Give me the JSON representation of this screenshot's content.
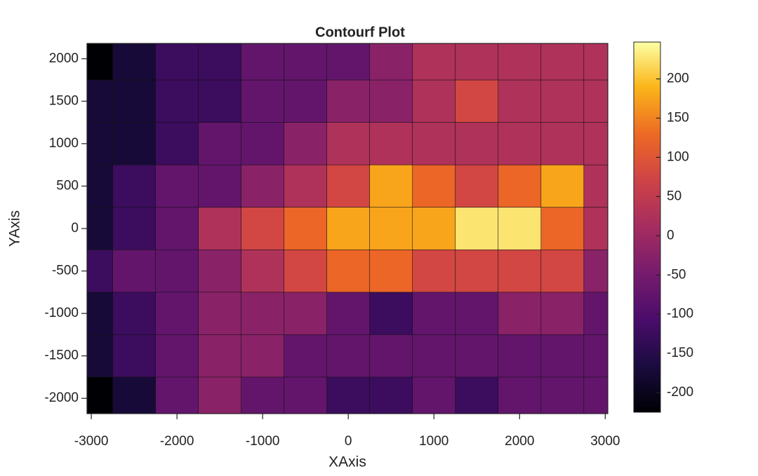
{
  "chart_data": {
    "type": "contour",
    "title": "Contourf Plot",
    "x_label": "XAxis",
    "y_label": "YAxis",
    "x": [
      -3000,
      -2500,
      -2000,
      -1500,
      -1000,
      -500,
      0,
      500,
      1000,
      1500,
      2000,
      2500,
      3000
    ],
    "y": [
      2000,
      1500,
      1000,
      500,
      0,
      -500,
      -1000,
      -1500,
      -2000
    ],
    "z": [
      [
        -210,
        -180,
        -130,
        -110,
        -100,
        -90,
        -60,
        -30,
        20,
        30,
        10,
        20,
        40
      ],
      [
        -200,
        -170,
        -130,
        -110,
        -90,
        -70,
        -40,
        -20,
        20,
        60,
        10,
        10,
        40
      ],
      [
        -190,
        -160,
        -120,
        -90,
        -60,
        -40,
        0,
        10,
        10,
        10,
        20,
        10,
        30
      ],
      [
        -170,
        -130,
        -90,
        -60,
        -10,
        20,
        80,
        180,
        120,
        80,
        100,
        160,
        30
      ],
      [
        -160,
        -110,
        -60,
        20,
        80,
        130,
        180,
        190,
        160,
        210,
        230,
        120,
        10
      ],
      [
        -150,
        -100,
        -60,
        -20,
        30,
        80,
        100,
        110,
        90,
        80,
        80,
        50,
        -10
      ],
      [
        -180,
        -110,
        -70,
        -50,
        -40,
        -50,
        -60,
        -120,
        -90,
        -60,
        -40,
        -40,
        -60
      ],
      [
        -200,
        -130,
        -60,
        -20,
        -40,
        -70,
        -60,
        -90,
        -60,
        -60,
        -70,
        -80,
        -70
      ],
      [
        -220,
        -160,
        -80,
        -40,
        -70,
        -100,
        -120,
        -110,
        -100,
        -110,
        -100,
        -100,
        -90
      ]
    ],
    "levels": [
      -250,
      -200,
      -150,
      -100,
      -50,
      0,
      50,
      100,
      150,
      200,
      250
    ],
    "colormap": "inferno",
    "xlim": [
      -3050,
      3030
    ],
    "ylim": [
      -2180,
      2180
    ],
    "xticks": [
      -3000,
      -2000,
      -1000,
      0,
      1000,
      2000,
      3000
    ],
    "yticks": [
      -2000,
      -1500,
      -1000,
      -500,
      0,
      500,
      1000,
      1500,
      2000
    ],
    "clim": [
      -225,
      247
    ],
    "cticks": [
      -200,
      -150,
      -100,
      -50,
      0,
      50,
      100,
      150,
      200
    ]
  }
}
